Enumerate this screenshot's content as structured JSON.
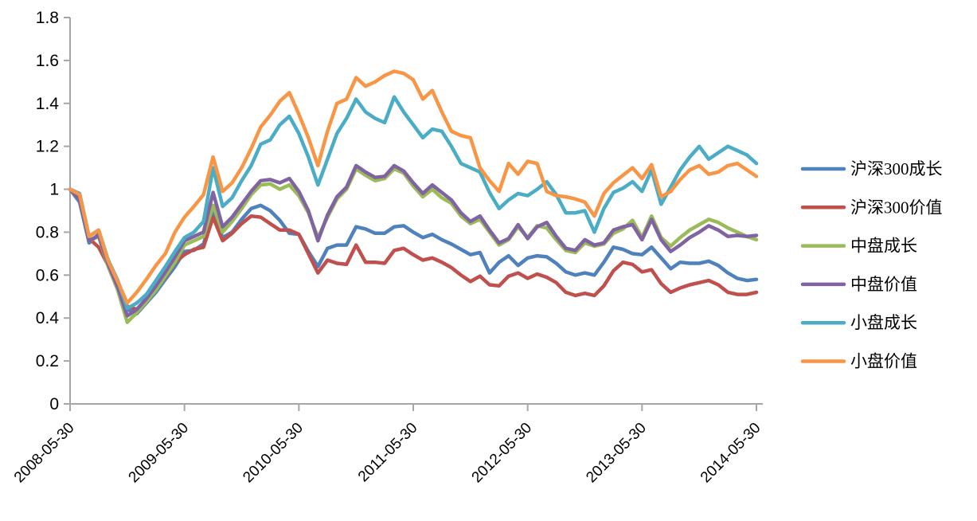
{
  "chart_data": {
    "type": "line",
    "title": "",
    "xlabel": "",
    "ylabel": "",
    "grid": false,
    "legend_position": "right",
    "ylim": [
      0,
      1.8
    ],
    "y_ticks": [
      0,
      0.2,
      0.4,
      0.6,
      0.8,
      1,
      1.2,
      1.4,
      1.6,
      1.8
    ],
    "y_tick_labels": [
      "0",
      "0.2",
      "0.4",
      "0.6",
      "0.8",
      "1",
      "1.2",
      "1.4",
      "1.6",
      "1.8"
    ],
    "x_tick_labels": [
      "2008-05-30",
      "2009-05-30",
      "2010-05-30",
      "2011-05-30",
      "2012-05-30",
      "2013-05-30",
      "2014-05-30"
    ],
    "x_tick_month_indices": [
      0,
      12,
      24,
      36,
      48,
      60,
      72
    ],
    "x_sampling": "monthly, 73 points from 2008-05-30 to 2014-05-30",
    "axis_color": "#a6a6a6",
    "text_color": "#000000",
    "background_color": "#ffffff",
    "series": [
      {
        "name": "沪深300成长",
        "color": "#4F81BD",
        "values": [
          1.0,
          0.94,
          0.75,
          0.79,
          0.66,
          0.55,
          0.44,
          0.42,
          0.47,
          0.52,
          0.58,
          0.64,
          0.71,
          0.715,
          0.745,
          0.89,
          0.775,
          0.8,
          0.86,
          0.91,
          0.925,
          0.9,
          0.855,
          0.795,
          0.79,
          0.71,
          0.64,
          0.725,
          0.74,
          0.74,
          0.825,
          0.815,
          0.795,
          0.795,
          0.825,
          0.83,
          0.8,
          0.775,
          0.79,
          0.765,
          0.745,
          0.72,
          0.695,
          0.705,
          0.61,
          0.66,
          0.69,
          0.645,
          0.68,
          0.69,
          0.685,
          0.655,
          0.615,
          0.6,
          0.61,
          0.6,
          0.66,
          0.73,
          0.72,
          0.7,
          0.695,
          0.73,
          0.68,
          0.63,
          0.66,
          0.655,
          0.655,
          0.665,
          0.645,
          0.61,
          0.585,
          0.575,
          0.58
        ]
      },
      {
        "name": "沪深300价值",
        "color": "#C0504D",
        "values": [
          1.0,
          0.955,
          0.77,
          0.73,
          0.645,
          0.56,
          0.455,
          0.44,
          0.49,
          0.54,
          0.59,
          0.66,
          0.695,
          0.72,
          0.73,
          0.87,
          0.76,
          0.795,
          0.84,
          0.875,
          0.87,
          0.84,
          0.81,
          0.81,
          0.79,
          0.7,
          0.61,
          0.67,
          0.655,
          0.65,
          0.74,
          0.66,
          0.66,
          0.655,
          0.715,
          0.725,
          0.695,
          0.67,
          0.68,
          0.66,
          0.635,
          0.6,
          0.57,
          0.595,
          0.555,
          0.55,
          0.595,
          0.61,
          0.585,
          0.605,
          0.59,
          0.565,
          0.52,
          0.505,
          0.515,
          0.505,
          0.55,
          0.62,
          0.66,
          0.65,
          0.615,
          0.625,
          0.56,
          0.52,
          0.54,
          0.555,
          0.565,
          0.575,
          0.555,
          0.52,
          0.51,
          0.51,
          0.52
        ]
      },
      {
        "name": "中盘成长",
        "color": "#9BBB59",
        "values": [
          1.0,
          0.965,
          0.76,
          0.78,
          0.64,
          0.53,
          0.38,
          0.425,
          0.475,
          0.53,
          0.595,
          0.66,
          0.74,
          0.76,
          0.78,
          0.925,
          0.8,
          0.85,
          0.91,
          0.975,
          1.02,
          1.025,
          1.0,
          1.02,
          0.97,
          0.89,
          0.775,
          0.87,
          0.955,
          1.0,
          1.095,
          1.065,
          1.04,
          1.05,
          1.095,
          1.075,
          1.015,
          0.965,
          1.0,
          0.96,
          0.935,
          0.875,
          0.84,
          0.86,
          0.8,
          0.74,
          0.765,
          0.825,
          0.775,
          0.83,
          0.82,
          0.765,
          0.715,
          0.705,
          0.75,
          0.735,
          0.745,
          0.795,
          0.815,
          0.855,
          0.775,
          0.875,
          0.775,
          0.735,
          0.775,
          0.81,
          0.835,
          0.86,
          0.845,
          0.82,
          0.8,
          0.78,
          0.765
        ]
      },
      {
        "name": "中盘价值",
        "color": "#8064A2",
        "values": [
          1.0,
          0.96,
          0.76,
          0.785,
          0.65,
          0.545,
          0.41,
          0.44,
          0.49,
          0.55,
          0.615,
          0.685,
          0.76,
          0.78,
          0.8,
          0.985,
          0.825,
          0.87,
          0.93,
          0.99,
          1.04,
          1.045,
          1.03,
          1.05,
          0.99,
          0.9,
          0.76,
          0.88,
          0.965,
          1.01,
          1.11,
          1.08,
          1.055,
          1.06,
          1.11,
          1.085,
          1.03,
          0.98,
          1.02,
          0.985,
          0.95,
          0.89,
          0.85,
          0.875,
          0.81,
          0.75,
          0.77,
          0.835,
          0.77,
          0.825,
          0.845,
          0.78,
          0.725,
          0.715,
          0.765,
          0.74,
          0.75,
          0.81,
          0.825,
          0.835,
          0.765,
          0.86,
          0.765,
          0.71,
          0.74,
          0.775,
          0.8,
          0.83,
          0.81,
          0.78,
          0.785,
          0.78,
          0.785
        ]
      },
      {
        "name": "小盘成长",
        "color": "#4BACC6",
        "values": [
          1.0,
          0.98,
          0.78,
          0.81,
          0.67,
          0.575,
          0.445,
          0.47,
          0.51,
          0.575,
          0.64,
          0.71,
          0.775,
          0.8,
          0.85,
          1.1,
          0.92,
          0.96,
          1.04,
          1.11,
          1.21,
          1.23,
          1.3,
          1.34,
          1.26,
          1.15,
          1.02,
          1.14,
          1.26,
          1.33,
          1.42,
          1.36,
          1.33,
          1.31,
          1.43,
          1.36,
          1.3,
          1.24,
          1.28,
          1.27,
          1.2,
          1.12,
          1.1,
          1.08,
          0.985,
          0.91,
          0.95,
          0.98,
          0.97,
          1.0,
          1.035,
          0.975,
          0.89,
          0.89,
          0.9,
          0.8,
          0.91,
          0.985,
          1.005,
          1.035,
          0.99,
          1.09,
          0.93,
          1.01,
          1.09,
          1.15,
          1.2,
          1.14,
          1.17,
          1.2,
          1.18,
          1.16,
          1.12
        ]
      },
      {
        "name": "小盘价值",
        "color": "#F79646",
        "values": [
          1.0,
          0.975,
          0.78,
          0.81,
          0.665,
          0.57,
          0.47,
          0.52,
          0.58,
          0.645,
          0.7,
          0.8,
          0.87,
          0.92,
          0.975,
          1.15,
          0.99,
          1.03,
          1.1,
          1.19,
          1.29,
          1.345,
          1.41,
          1.45,
          1.35,
          1.24,
          1.11,
          1.27,
          1.4,
          1.42,
          1.52,
          1.48,
          1.5,
          1.53,
          1.55,
          1.54,
          1.51,
          1.42,
          1.46,
          1.36,
          1.27,
          1.25,
          1.24,
          1.1,
          1.04,
          0.99,
          1.12,
          1.07,
          1.13,
          1.12,
          0.99,
          0.97,
          0.965,
          0.955,
          0.94,
          0.875,
          0.98,
          1.03,
          1.065,
          1.1,
          1.05,
          1.115,
          0.965,
          0.99,
          1.045,
          1.09,
          1.11,
          1.07,
          1.08,
          1.11,
          1.12,
          1.09,
          1.06
        ]
      }
    ]
  }
}
